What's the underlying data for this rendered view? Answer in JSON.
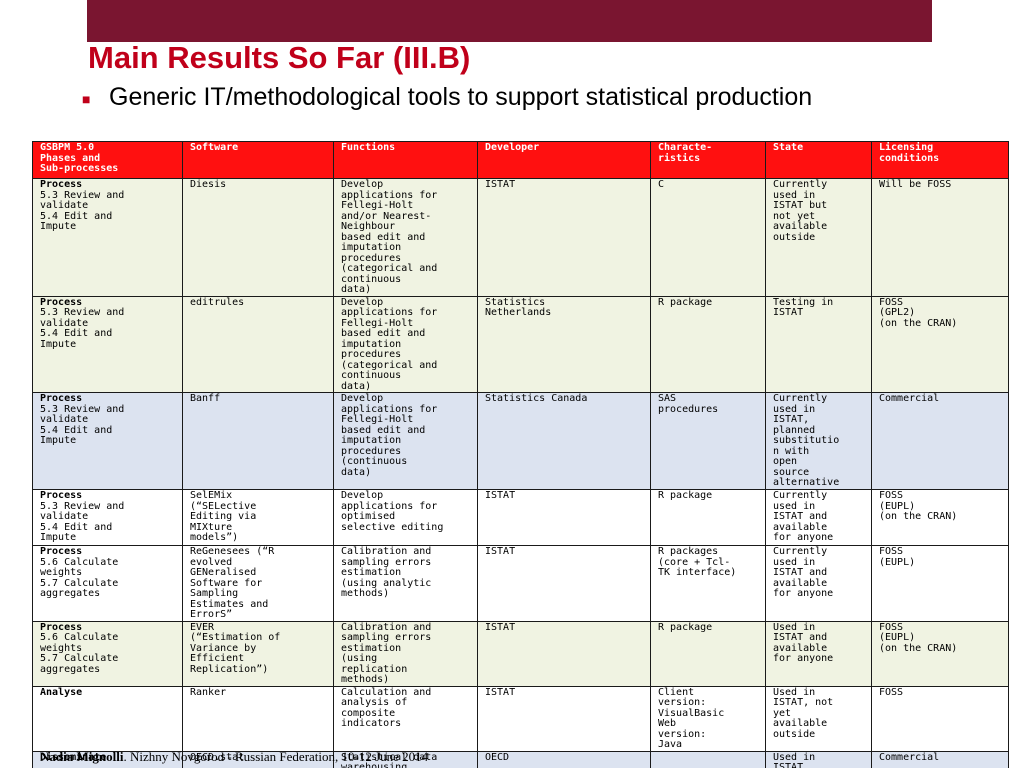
{
  "slide": {
    "title": "Main Results So Far (III.B)",
    "bullet": "Generic IT/methodological tools to support statistical production",
    "accent_color": "#c0001a",
    "top_bar_color": "#7a1530"
  },
  "table": {
    "headers": [
      "GSBPM 5.0\nPhases and\nSub-processes",
      "Software",
      "Functions",
      "Developer",
      "Characte-\nristics",
      "State",
      "Licensing\nconditions"
    ],
    "header_color": "#ff1010",
    "rows": [
      {
        "phase": "Process",
        "subs": "5.3 Review and\nvalidate\n5.4 Edit and\nImpute",
        "software": "Diesis",
        "functions": "Develop\napplications for\nFellegi-Holt\nand/or Nearest-\nNeighbour\nbased edit and\nimputation\nprocedures\n(categorical and\ncontinuous\ndata)",
        "developer": "ISTAT",
        "characteristics": "C",
        "state": "Currently\nused in\nISTAT but\nnot yet\navailable\noutside",
        "licensing": "Will be FOSS"
      },
      {
        "phase": "Process",
        "subs": "5.3 Review and\nvalidate\n5.4 Edit and\nImpute",
        "software": "editrules",
        "functions": "Develop\napplications for\nFellegi-Holt\nbased edit and\nimputation\nprocedures\n(categorical and\ncontinuous\ndata)",
        "developer": "Statistics\nNetherlands",
        "characteristics": "R package",
        "state": "Testing in\nISTAT",
        "licensing": "FOSS\n(GPL2)\n(on the CRAN)"
      },
      {
        "phase": "Process",
        "subs": "5.3 Review and\nvalidate\n5.4 Edit and\nImpute",
        "software": "Banff",
        "functions": "Develop\napplications for\nFellegi-Holt\nbased edit and\nimputation\nprocedures\n(continuous\ndata)",
        "developer": "Statistics Canada",
        "characteristics": "SAS\nprocedures",
        "state": "Currently\nused in\nISTAT,\nplanned\nsubstitutio\nn with\nopen\nsource\nalternative",
        "licensing": "Commercial"
      },
      {
        "phase": "Process",
        "subs": "5.3 Review and\nvalidate\n5.4 Edit and\nImpute",
        "software": "SelEMix\n(“SELective\nEditing via\nMIXture\nmodels”)",
        "functions": "Develop\napplications for\noptimised\nselective editing",
        "developer": "ISTAT",
        "characteristics": "R package",
        "state": "Currently\nused in\nISTAT and\navailable\nfor anyone",
        "licensing": "FOSS\n(EUPL)\n(on the CRAN)"
      },
      {
        "phase": "Process",
        "subs": "5.6 Calculate\nweights\n5.7 Calculate\naggregates",
        "software": "ReGenesees (“R\nevolved\nGENeralised\nSoftware for\nSampling\nEstimates and\nErrorS”",
        "functions": "Calibration and\nsampling errors\nestimation\n(using analytic\nmethods)",
        "developer": "ISTAT",
        "characteristics": "R packages\n(core + Tcl-\nTK interface)",
        "state": "Currently\nused in\nISTAT and\navailable\nfor anyone",
        "licensing": "FOSS\n(EUPL)"
      },
      {
        "phase": "Process",
        "subs": "5.6 Calculate\nweights\n5.7 Calculate\naggregates",
        "software": "EVER\n(“Estimation of\nVariance by\nEfficient\nReplication”)",
        "functions": "Calibration and\nsampling errors\nestimation\n(using\nreplication\nmethods)",
        "developer": "ISTAT",
        "characteristics": "R package",
        "state": "Used in\nISTAT and\navailable\nfor anyone",
        "licensing": "FOSS\n(EUPL)\n(on the CRAN)"
      },
      {
        "phase": "Analyse",
        "subs": "",
        "software": "Ranker",
        "functions": "Calculation and\nanalysis of\ncomposite\nindicators",
        "developer": "ISTAT",
        "characteristics": "Client\nversion:\nVisualBasic\nWeb\nversion:\nJava",
        "state": "Used in\nISTAT, not\nyet\navailable\noutside",
        "licensing": "FOSS"
      },
      {
        "phase": "Disseminate",
        "subs": "",
        "software": "OECD.stat",
        "functions": "Statistical data\nwarehousing",
        "developer": "OECD",
        "characteristics": "",
        "state": "Used in\nISTAT",
        "licensing": "Commercial"
      }
    ]
  },
  "footer": {
    "author": "Nadia Mignolli",
    "rest": ". Nizhny Novgorod - Russian Federation, 10-12 June 2014"
  }
}
